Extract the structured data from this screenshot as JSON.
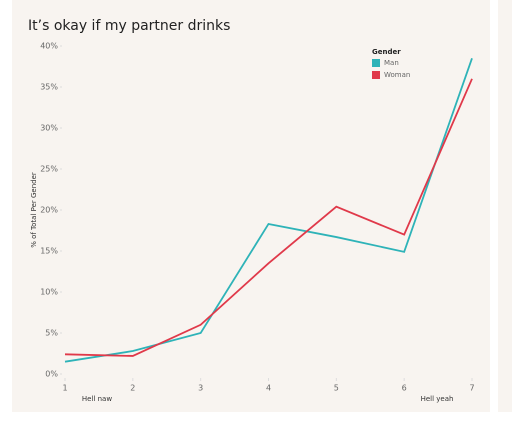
{
  "chart_data": {
    "type": "line",
    "title": "It’s okay if my partner drinks",
    "y_label": "% of Total Per Gender",
    "x": [
      1,
      2,
      3,
      4,
      5,
      6,
      7
    ],
    "xlim": [
      1,
      7
    ],
    "xticks": [
      1,
      2,
      3,
      4,
      5,
      6,
      7
    ],
    "ylim": [
      0,
      40
    ],
    "yticks": [
      {
        "value": 0,
        "label": "0%"
      },
      {
        "value": 5,
        "label": "5%"
      },
      {
        "value": 10,
        "label": "10%"
      },
      {
        "value": 15,
        "label": "15%"
      },
      {
        "value": 20,
        "label": "20%"
      },
      {
        "value": 25,
        "label": "25%"
      },
      {
        "value": 30,
        "label": "30%"
      },
      {
        "value": 35,
        "label": "35%"
      },
      {
        "value": 40,
        "label": "40%"
      }
    ],
    "grid": false,
    "legend_title": "Gender",
    "legend_position": "top-right",
    "annotations": [
      "Hell naw",
      "Hell yeah"
    ],
    "series": [
      {
        "name": "Man",
        "color": "#2eb3b8",
        "values": [
          1.5,
          2.8,
          5,
          18.3,
          16.7,
          14.9,
          38.5
        ]
      },
      {
        "name": "Woman",
        "color": "#e0394a",
        "values": [
          2.4,
          2.2,
          6,
          13.5,
          20.4,
          17,
          36
        ]
      }
    ]
  }
}
